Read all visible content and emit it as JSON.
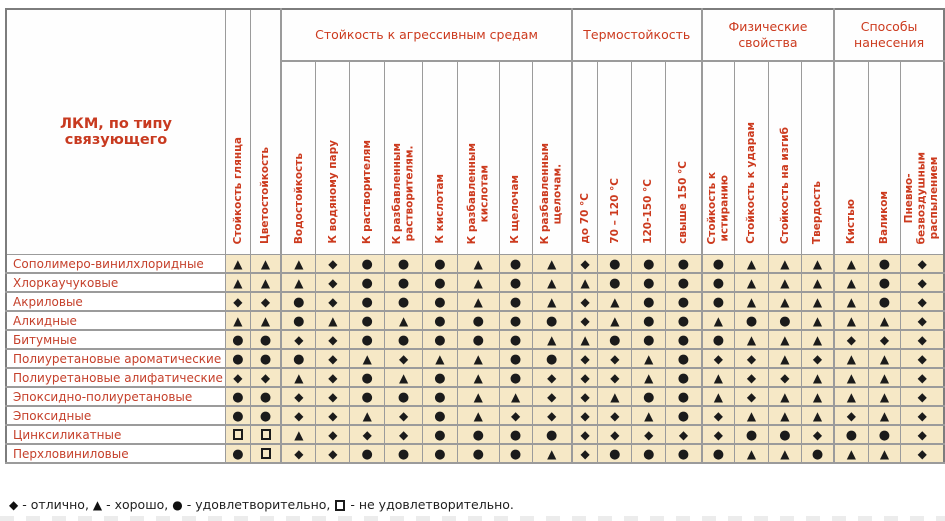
{
  "colors": {
    "accent_red": "#cc3a1e",
    "row_label_red": "#c5402b",
    "cell_beige": "#f6e8c6",
    "symbol_black": "#1b1b1b",
    "grid_gray": "#9b9b9b"
  },
  "symbols": {
    "D": {
      "glyph": "◆",
      "meaning": "отлично"
    },
    "T": {
      "glyph": "▲",
      "meaning": "хорошо"
    },
    "C": {
      "glyph": "●",
      "meaning": "удовлетворительно"
    },
    "S": {
      "glyph": "❑",
      "meaning": "не удовлетворительно"
    }
  },
  "table": {
    "corner_label": "ЛКМ, по типу связующего",
    "standalone_columns": [
      {
        "label": "Стойкость глянца"
      },
      {
        "label": "Цветостойкость"
      }
    ],
    "groups": [
      {
        "label": "Стойкость к агрессивным средам",
        "span": 8
      },
      {
        "label": "Термостойкость",
        "span": 4
      },
      {
        "label": "Физические\nсвойства",
        "span": 4
      },
      {
        "label": "Способы\nнанесения",
        "span": 3
      }
    ],
    "columns": [
      {
        "label": "Водостойкость"
      },
      {
        "label": "К водяному пару"
      },
      {
        "label": "К растворителям"
      },
      {
        "label": "К разбавленным\nрастворителям."
      },
      {
        "label": "К кислотам"
      },
      {
        "label": "К разбавленным\nкислотам"
      },
      {
        "label": "К щелочам"
      },
      {
        "label": "К разбавленным\nщелочам."
      },
      {
        "label": "до 70 °С"
      },
      {
        "label": "70 – 120 °С"
      },
      {
        "label": "120-150 °С"
      },
      {
        "label": "свыше 150 °С"
      },
      {
        "label": "Стойкость к\nистиранию"
      },
      {
        "label": "Стойкость к ударам"
      },
      {
        "label": "Стойкость на изгиб"
      },
      {
        "label": "Твердость"
      },
      {
        "label": "Кистью"
      },
      {
        "label": "Валиком"
      },
      {
        "label": "Пневмо-\nбезвоздушным\nраспылением"
      }
    ],
    "rows": [
      {
        "label": "Сополимеро-винилхлоридные",
        "values": [
          "T",
          "T",
          "T",
          "D",
          "C",
          "C",
          "C",
          "T",
          "C",
          "T",
          "D",
          "C",
          "C",
          "C",
          "C",
          "T",
          "T",
          "T",
          "T",
          "C",
          "D"
        ]
      },
      {
        "label": "Хлоркаучуковые",
        "values": [
          "T",
          "T",
          "T",
          "D",
          "C",
          "C",
          "C",
          "T",
          "C",
          "T",
          "T",
          "C",
          "C",
          "C",
          "C",
          "T",
          "T",
          "T",
          "T",
          "C",
          "D"
        ]
      },
      {
        "label": "Акриловые",
        "values": [
          "D",
          "D",
          "C",
          "D",
          "C",
          "C",
          "C",
          "T",
          "C",
          "T",
          "D",
          "T",
          "C",
          "C",
          "C",
          "T",
          "T",
          "T",
          "T",
          "C",
          "D"
        ]
      },
      {
        "label": "Алкидные",
        "values": [
          "T",
          "T",
          "C",
          "T",
          "C",
          "T",
          "C",
          "C",
          "C",
          "C",
          "D",
          "T",
          "C",
          "C",
          "T",
          "C",
          "C",
          "T",
          "T",
          "T",
          "D"
        ]
      },
      {
        "label": "Битумные",
        "values": [
          "C",
          "C",
          "D",
          "D",
          "C",
          "C",
          "C",
          "C",
          "C",
          "T",
          "T",
          "C",
          "C",
          "C",
          "C",
          "T",
          "T",
          "T",
          "D",
          "D",
          "D"
        ]
      },
      {
        "label": "Полиуретановые ароматические",
        "values": [
          "C",
          "C",
          "C",
          "D",
          "T",
          "D",
          "T",
          "T",
          "C",
          "C",
          "D",
          "D",
          "T",
          "C",
          "D",
          "D",
          "T",
          "D",
          "T",
          "T",
          "D"
        ]
      },
      {
        "label": "Полиуретановые алифатические",
        "values": [
          "D",
          "D",
          "T",
          "D",
          "C",
          "T",
          "C",
          "T",
          "C",
          "D",
          "D",
          "D",
          "T",
          "C",
          "T",
          "D",
          "D",
          "T",
          "T",
          "T",
          "D"
        ]
      },
      {
        "label": "Эпоксидно-полиуретановые",
        "values": [
          "C",
          "C",
          "D",
          "D",
          "C",
          "C",
          "C",
          "T",
          "T",
          "D",
          "D",
          "T",
          "C",
          "C",
          "T",
          "D",
          "T",
          "T",
          "T",
          "T",
          "D"
        ]
      },
      {
        "label": "Эпоксидные",
        "values": [
          "C",
          "C",
          "D",
          "D",
          "T",
          "D",
          "C",
          "T",
          "D",
          "D",
          "D",
          "D",
          "T",
          "C",
          "D",
          "T",
          "T",
          "T",
          "D",
          "T",
          "D"
        ]
      },
      {
        "label": "Цинксиликатные",
        "values": [
          "S",
          "S",
          "T",
          "D",
          "D",
          "D",
          "C",
          "C",
          "C",
          "C",
          "D",
          "D",
          "D",
          "D",
          "D",
          "C",
          "C",
          "D",
          "C",
          "C",
          "D"
        ]
      },
      {
        "label": "Перхловиниловые",
        "values": [
          "C",
          "S",
          "D",
          "D",
          "C",
          "C",
          "C",
          "C",
          "C",
          "T",
          "D",
          "C",
          "C",
          "C",
          "C",
          "T",
          "T",
          "C",
          "T",
          "T",
          "D"
        ]
      }
    ]
  },
  "legend": {
    "items": [
      {
        "symbol": "D",
        "text": " - отлично, "
      },
      {
        "symbol": "T",
        "text": " - хорошо, "
      },
      {
        "symbol": "C",
        "text": " - удовлетворительно, "
      },
      {
        "symbol": "S",
        "text": " - не удовлетворительно."
      }
    ]
  }
}
